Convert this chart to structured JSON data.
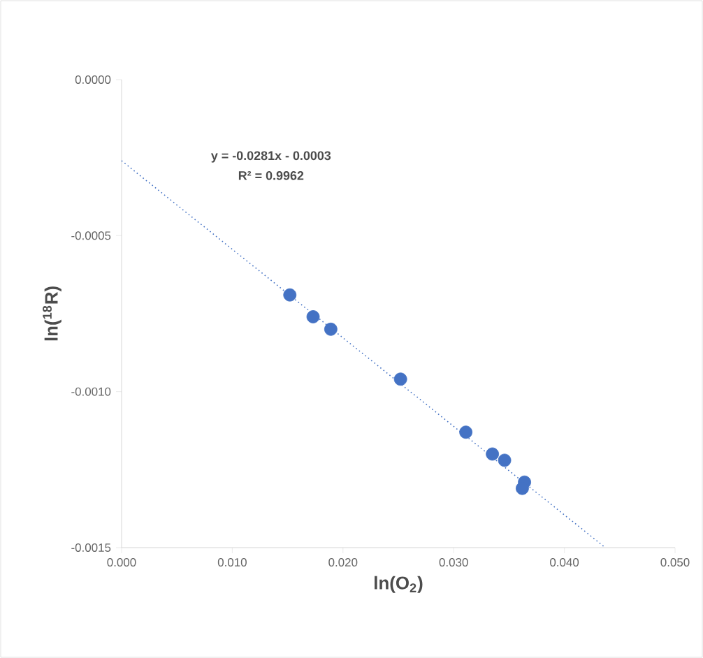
{
  "chart_data": {
    "type": "scatter",
    "xlabel": "ln(O$_{2}$)",
    "ylabel": "ln($^{18}$R)",
    "xlim": [
      0,
      0.05
    ],
    "ylim": [
      -0.0015,
      0
    ],
    "xticks": [
      {
        "value": 0,
        "label": "0.000"
      },
      {
        "value": 0.01,
        "label": "0.010"
      },
      {
        "value": 0.02,
        "label": "0.020"
      },
      {
        "value": 0.03,
        "label": "0.030"
      },
      {
        "value": 0.04,
        "label": "0.040"
      },
      {
        "value": 0.05,
        "label": "0.050"
      }
    ],
    "yticks": [
      {
        "value": -0.0015,
        "label": "-0.0015"
      },
      {
        "value": -0.001,
        "label": "-0.0010"
      },
      {
        "value": -0.0005,
        "label": "-0.0005"
      },
      {
        "value": 0,
        "label": "0.0000"
      }
    ],
    "grid": false,
    "annotations": [
      "y = -0.0281x - 0.0003",
      "R² = 0.9962"
    ],
    "series": [
      {
        "color": "#4472c4",
        "marker": "circle",
        "x": [
          0.0152,
          0.0173,
          0.0189,
          0.0252,
          0.0311,
          0.0335,
          0.0346,
          0.0364,
          0.0362
        ],
        "values": [
          -0.00069,
          -0.00076,
          -0.0008,
          -0.00096,
          -0.00113,
          -0.0012,
          -0.00122,
          -0.00129,
          -0.00131
        ]
      },
      {
        "type": "line",
        "color": "#4472c4",
        "marker": "none",
        "line_style": "dotted",
        "x": [
          0,
          0.0437
        ],
        "values": [
          -0.00026,
          -0.0015
        ]
      }
    ]
  }
}
